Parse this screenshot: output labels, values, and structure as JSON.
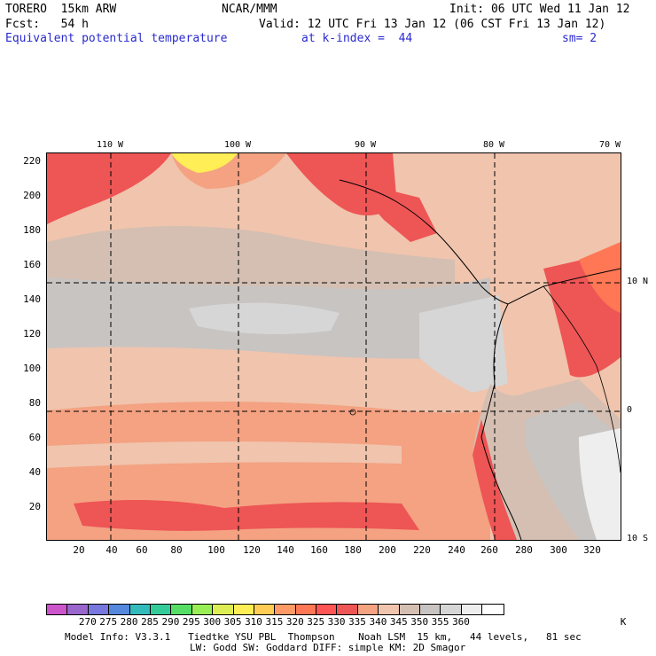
{
  "header": {
    "model": "TORERO  15km ARW",
    "org": "NCAR/MMM",
    "init": "Init: 06 UTC Wed 11 Jan 12",
    "fcst": "Fcst:   54 h",
    "valid": "Valid: 12 UTC Fri 13 Jan 12 (06 CST Fri 13 Jan 12)",
    "field": "Equivalent potential temperature",
    "level": "at k-index =  44",
    "smooth": "sm= 2"
  },
  "map": {
    "y_ticks": [
      "220",
      "200",
      "180",
      "160",
      "140",
      "120",
      "100",
      "80",
      "60",
      "40",
      "20"
    ],
    "x_ticks": [
      "20",
      "40",
      "60",
      "80",
      "100",
      "120",
      "140",
      "160",
      "180",
      "200",
      "220",
      "240",
      "260",
      "280",
      "300",
      "320"
    ],
    "lon_labels": [
      "110 W",
      "100 W",
      "90 W",
      "80 W",
      "70 W"
    ],
    "lat_labels": [
      "10 N",
      "0",
      "10 S"
    ]
  },
  "colorbar": {
    "colors": [
      "#cc55cc",
      "#9966cc",
      "#7777dd",
      "#5588dd",
      "#33bbbb",
      "#33cc99",
      "#55dd66",
      "#99ee55",
      "#ddee55",
      "#ffee55",
      "#ffcc55",
      "#ff9966",
      "#ff7755",
      "#ff5555",
      "#ee5555",
      "#f4a282",
      "#f0c4ad",
      "#d4bfb2",
      "#c8c4c2",
      "#d6d6d6",
      "#eeeeee",
      "#ffffff"
    ],
    "labels": [
      "270",
      "275",
      "280",
      "285",
      "290",
      "295",
      "300",
      "305",
      "310",
      "315",
      "320",
      "325",
      "330",
      "335",
      "340",
      "345",
      "350",
      "355",
      "360"
    ],
    "unit": "K"
  },
  "footer": {
    "line1": "Model Info: V3.3.1   Tiedtke YSU PBL  Thompson    Noah LSM  15 km,   44 levels,   81 sec",
    "line2": "LW: Godd SW: Goddard DIFF: simple KM: 2D Smagor"
  }
}
